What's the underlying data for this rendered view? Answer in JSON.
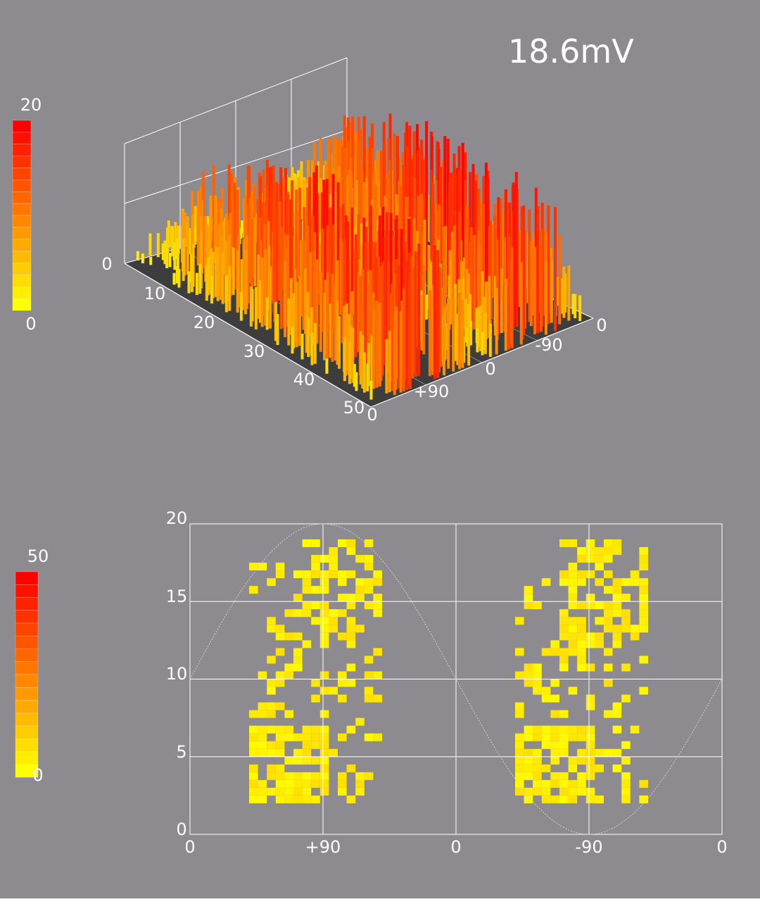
{
  "reading": "18.6mV",
  "colors": {
    "background": "#8d8b8f",
    "floor": "#3d3d3d",
    "grid": "#ffffff",
    "low": "#ffff00",
    "high": "#ff0000"
  },
  "chart_data": [
    {
      "type": "bar3d",
      "title": "",
      "legend": {
        "placement": "left",
        "max_label": "20",
        "min_label": "0",
        "min": 0,
        "max": 20
      },
      "x_axis": {
        "ticks": [
          "10",
          "20",
          "30",
          "40",
          "50"
        ],
        "range": [
          0,
          50
        ]
      },
      "phase_axis": {
        "ticks": [
          "0",
          "+90",
          "0",
          "-90",
          "0"
        ],
        "range": [
          0,
          360
        ]
      },
      "z_axis": {
        "ticks": [
          "0"
        ],
        "range": [
          0,
          20
        ]
      },
      "note": "dense field of colored bars, heights 0-20 counts per cell (amplitude vs phase)"
    },
    {
      "type": "heatmap",
      "title": "",
      "legend": {
        "placement": "left",
        "max_label": "50",
        "min_label": "0",
        "min": 0,
        "max": 50
      },
      "x_ticks": [
        "0",
        "+90",
        "0",
        "-90",
        "0"
      ],
      "y_ticks": [
        "0",
        "5",
        "10",
        "15",
        "20"
      ],
      "xlim": [
        0,
        360
      ],
      "ylim": [
        0,
        20
      ],
      "grid": true,
      "reference_curve": "sine",
      "clusters": [
        {
          "phase_range": [
            40,
            130
          ],
          "amplitude_range": [
            2,
            19
          ]
        },
        {
          "phase_range": [
            220,
            310
          ],
          "amplitude_range": [
            2,
            19
          ]
        }
      ]
    }
  ]
}
